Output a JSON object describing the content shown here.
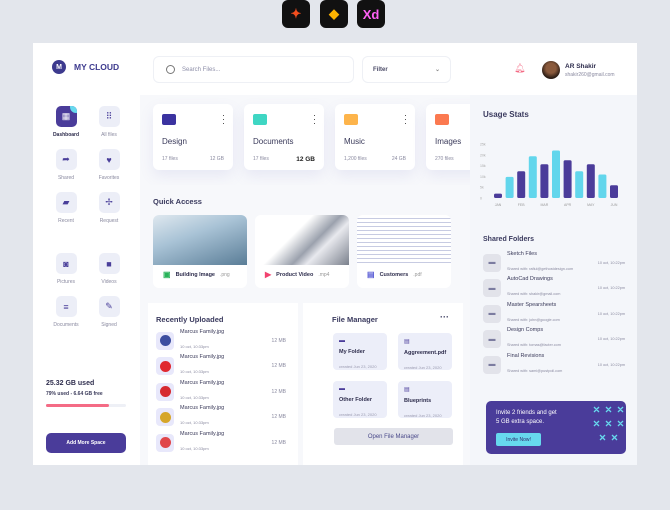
{
  "tool_logos": [
    "Figma",
    "Sketch",
    "Xd"
  ],
  "brand": {
    "initial": "M",
    "name": "MY CLOUD"
  },
  "nav": [
    {
      "label": "Dashboard",
      "icon": "dashboard-icon"
    },
    {
      "label": "All files",
      "icon": "grid-icon"
    },
    {
      "label": "Shared",
      "icon": "share-icon"
    },
    {
      "label": "Favorites",
      "icon": "heart-icon"
    },
    {
      "label": "Recent",
      "icon": "file-icon"
    },
    {
      "label": "Request",
      "icon": "request-icon"
    },
    {
      "label": "Pictures",
      "icon": "camera-icon"
    },
    {
      "label": "Videos",
      "icon": "video-icon"
    },
    {
      "label": "Documents",
      "icon": "document-icon"
    },
    {
      "label": "Signed",
      "icon": "signed-icon"
    }
  ],
  "storage": {
    "used": "25.32 GB used",
    "detail": "79% used - 6.64 GB free",
    "percent": 79,
    "button": "Add More Space"
  },
  "header": {
    "search_placeholder": "Search Files...",
    "filter": "Filter",
    "user_name": "AR Shakir",
    "user_email": "shakir260@gmail.com"
  },
  "folders": [
    {
      "name": "Design",
      "files": "17 files",
      "size": "12 GB",
      "color": "#3b33a0"
    },
    {
      "name": "Documents",
      "files": "17 files",
      "size": "12 GB",
      "color": "#3fd6c3"
    },
    {
      "name": "Music",
      "files": "1,200 files",
      "size": "24 GB",
      "color": "#fdb44b"
    },
    {
      "name": "Images",
      "files": "270 files",
      "size": "",
      "color": "#fb7950"
    }
  ],
  "quick_access": {
    "title": "Quick Access",
    "items": [
      {
        "name": "Building Image",
        "ext": ".png"
      },
      {
        "name": "Product Video",
        "ext": ".mp4"
      },
      {
        "name": "Customers",
        "ext": ".pdf"
      }
    ]
  },
  "recent": {
    "title": "Recently Uploaded",
    "items": [
      {
        "name": "Marcus Family.jpg",
        "date": "10 oct, 10:33pm",
        "size": "12 MB"
      },
      {
        "name": "Marcus Family.jpg",
        "date": "10 oct, 10:33pm",
        "size": "12 MB"
      },
      {
        "name": "Marcus Family.jpg",
        "date": "10 oct, 10:33pm",
        "size": "12 MB"
      },
      {
        "name": "Marcus Family.jpg",
        "date": "10 oct, 10:33pm",
        "size": "12 MB"
      },
      {
        "name": "Marcus Family.jpg",
        "date": "10 oct, 10:33pm",
        "size": "12 MB"
      }
    ]
  },
  "file_manager": {
    "title": "File Manager",
    "more": "···",
    "items": [
      {
        "name": "My Folder",
        "date": "created Jun 23, 2020",
        "icon": "folder-icon"
      },
      {
        "name": "Aggreement.pdf",
        "date": "created Jun 23, 2020",
        "icon": "file-icon"
      },
      {
        "name": "Other Folder",
        "date": "created Jun 23, 2020",
        "icon": "folder-icon"
      },
      {
        "name": "Blueprints",
        "date": "created Jun 23, 2020",
        "icon": "file-icon"
      }
    ],
    "button": "Open File Manager"
  },
  "usage": {
    "title": "Usage Stats"
  },
  "chart_data": {
    "type": "bar",
    "yticks": [
      "0",
      "5k",
      "10k",
      "15k",
      "20k",
      "25k"
    ],
    "ylim": [
      0,
      25000
    ],
    "xticks": [
      "JAN",
      "FEB",
      "MAR",
      "APR",
      "MAY",
      "JUN"
    ],
    "values": [
      2000,
      9800,
      12400,
      19300,
      15600,
      22000,
      17500,
      12400,
      15600,
      10900,
      5900
    ],
    "colors": [
      "#4b3c9a",
      "#62d6ec"
    ]
  },
  "shared": {
    "title": "Shared Folders",
    "items": [
      {
        "name": "Sketch Files",
        "with": "Shared with: rafiul@gethostdesign.com",
        "date": "10 oct, 10:22pm"
      },
      {
        "name": "AutoCad Drawings",
        "with": "Shared with: shakir@gmail.com",
        "date": "10 oct, 10:22pm"
      },
      {
        "name": "Master Spearsheets",
        "with": "Shared with: john@google.com",
        "date": "10 oct, 10:22pm"
      },
      {
        "name": "Design Comps",
        "with": "Shared with: tomas@facter.com",
        "date": "10 oct, 10:22pm"
      },
      {
        "name": "Final Revisions",
        "with": "Shared with: sami@pustpoll.com",
        "date": "10 oct, 10:22pm"
      }
    ]
  },
  "invite": {
    "text1": "Invite 2 friends and get",
    "text2": "5 GB extra space.",
    "button": "Invite Now!"
  }
}
